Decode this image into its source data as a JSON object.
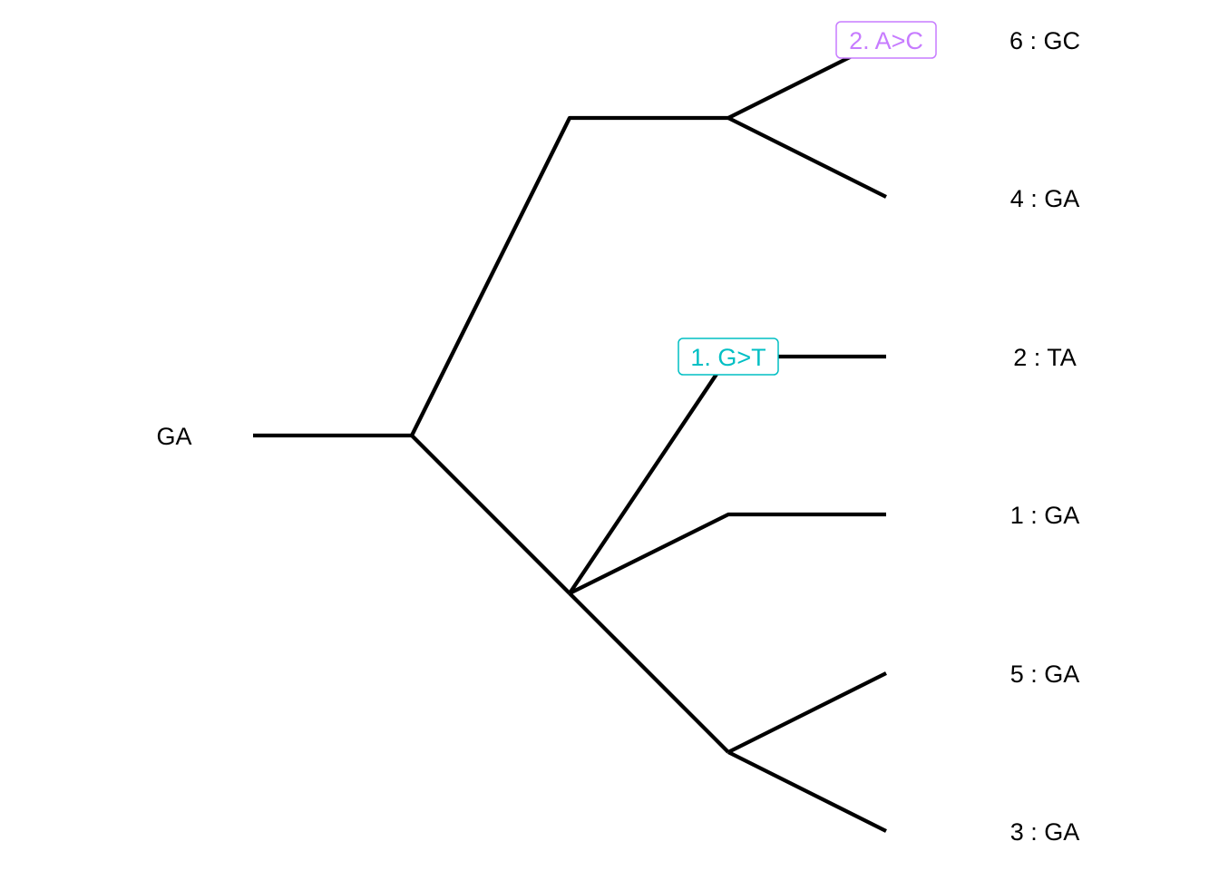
{
  "tree": {
    "root_label": "GA",
    "tips": [
      {
        "id": "tip-6",
        "label": "6 : GC"
      },
      {
        "id": "tip-4",
        "label": "4 : GA"
      },
      {
        "id": "tip-2",
        "label": "2 : TA"
      },
      {
        "id": "tip-1",
        "label": "1 : GA"
      },
      {
        "id": "tip-5",
        "label": "5 : GA"
      },
      {
        "id": "tip-3",
        "label": "3 : GA"
      }
    ],
    "mutations": [
      {
        "label": "2. A>C",
        "color": "#C77CFF"
      },
      {
        "label": "1. G>T",
        "color": "#00BFC4"
      }
    ]
  }
}
